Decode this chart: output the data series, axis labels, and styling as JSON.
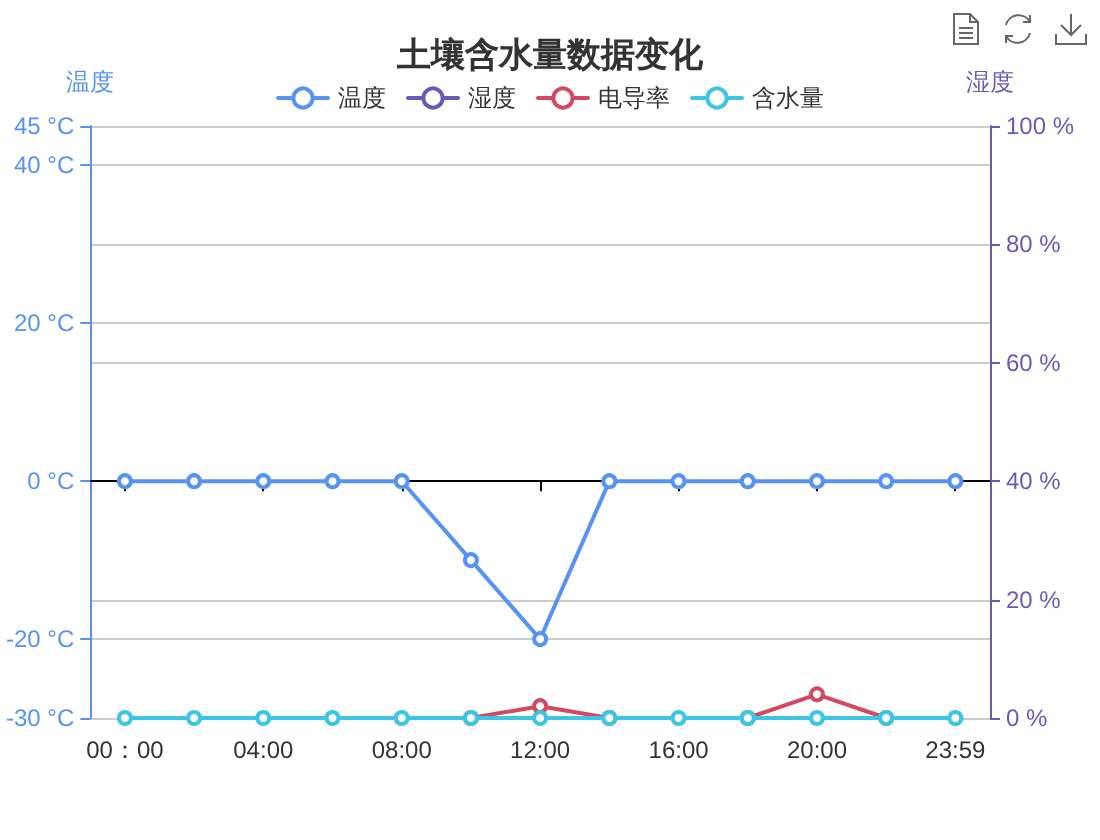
{
  "chart_data": {
    "type": "line",
    "title": "土壤含水量数据变化",
    "categories": [
      "00：00",
      null,
      "04:00",
      null,
      "08:00",
      null,
      "12:00",
      null,
      "16:00",
      null,
      "20:00",
      null,
      "23:59"
    ],
    "series": [
      {
        "name": "温度",
        "color": "#5793f3",
        "values": [
          0,
          0,
          0,
          0,
          0,
          -10,
          -20,
          0,
          0,
          0,
          0,
          0,
          0
        ]
      },
      {
        "name": "湿度",
        "color": "#675bba",
        "axis": "y2",
        "values": [
          null,
          null,
          null,
          null,
          null,
          null,
          null,
          null,
          null,
          null,
          null,
          null,
          null
        ]
      },
      {
        "name": "电导率",
        "color": "#d14a61",
        "axis": "y2",
        "values": [
          null,
          null,
          null,
          null,
          null,
          0,
          2,
          0,
          null,
          0,
          4,
          0,
          null
        ]
      },
      {
        "name": "含水量",
        "color": "#3cc5e6",
        "axis": "y2",
        "values": [
          0,
          0,
          0,
          0,
          0,
          0,
          0,
          0,
          0,
          0,
          0,
          0,
          0
        ]
      }
    ],
    "ylabel": "温度",
    "y2label": "湿度",
    "ylim": [
      -30,
      45
    ],
    "yticks": [
      {
        "value": -30,
        "label": "-30 °C"
      },
      {
        "value": -20,
        "label": "-20 °C"
      },
      {
        "value": 0,
        "label": "0 °C"
      },
      {
        "value": 20,
        "label": "20 °C"
      },
      {
        "value": 40,
        "label": "40 °C"
      },
      {
        "value": 45,
        "label": "45 °C"
      }
    ],
    "y2lim": [
      0,
      100
    ],
    "y2ticks": [
      {
        "value": 0,
        "label": "0 %"
      },
      {
        "value": 20,
        "label": "20 %"
      },
      {
        "value": 40,
        "label": "40 %"
      },
      {
        "value": 60,
        "label": "60 %"
      },
      {
        "value": 80,
        "label": "80 %"
      },
      {
        "value": 100,
        "label": "100 %"
      }
    ],
    "grid": "y",
    "legend": "top",
    "marker": "circle",
    "line_style": "solid"
  }
}
